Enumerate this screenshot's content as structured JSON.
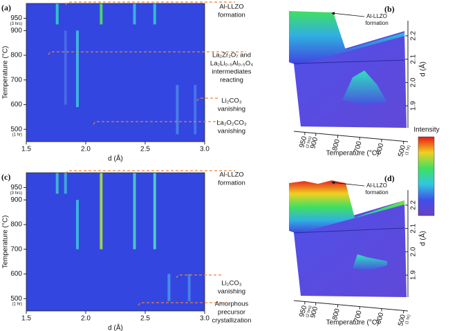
{
  "chart_data": [
    {
      "type": "heatmap",
      "panel": "(a)",
      "xlabel": "d (Å)",
      "ylabel": "Temperature (°C)",
      "xlim": [
        1.5,
        3.0
      ],
      "xticks": [
        1.5,
        {
          "value": 2,
          "label": "2.0"
        },
        2.5,
        {
          "value": 3,
          "label": "3.0"
        }
      ],
      "ylim": [
        450,
        1010
      ],
      "yticks": [
        500,
        600,
        700,
        800,
        900,
        950
      ],
      "ytick_notes": [
        {
          "value": 500,
          "label": "(1 hr)"
        },
        {
          "value": 950,
          "label": "(3 hrs)"
        }
      ],
      "streaks": [
        {
          "d": 1.76,
          "t0": 925,
          "t1": 1010,
          "color": "#30d0c8"
        },
        {
          "d": 2.13,
          "t0": 925,
          "t1": 1010,
          "color": "#50e060"
        },
        {
          "d": 2.41,
          "t0": 925,
          "t1": 1010,
          "color": "#40b8e0"
        },
        {
          "d": 2.58,
          "t0": 925,
          "t1": 1010,
          "color": "#30c8d0"
        },
        {
          "d": 1.93,
          "t0": 590,
          "t1": 900,
          "color": "#40c0e0"
        },
        {
          "d": 1.83,
          "t0": 600,
          "t1": 900,
          "color": "#4a6cec"
        },
        {
          "d": 2.77,
          "t0": 480,
          "t1": 680,
          "color": "#4a84ea"
        },
        {
          "d": 2.92,
          "t0": 480,
          "t1": 680,
          "color": "#4a78ea"
        }
      ],
      "annotations": [
        [
          "Al-LLZO",
          "formation"
        ],
        [
          "La₂Zr₂O₇ and",
          "La₂Li₀.₅Al₀.₅O₄",
          "intermediates",
          "reacting"
        ],
        [
          "Li₂CO₃",
          "vanishing"
        ],
        [
          "La₂O₂CO₃",
          "vanishing"
        ]
      ]
    },
    {
      "type": "surface",
      "panel": "(b)",
      "xlabel": "Temperature (°C)",
      "ylabel": "d (Å)",
      "xlim": [
        1000,
        480
      ],
      "xticks": [
        950,
        900,
        800,
        700,
        600,
        500
      ],
      "xtick_notes": [
        {
          "value": 950,
          "label": "(2 hrs)"
        },
        {
          "value": 500,
          "label": "(1 hr)"
        }
      ],
      "ylim": [
        1.85,
        2.25
      ],
      "yticks": [
        1.9,
        {
          "value": 2,
          "label": "2.0"
        },
        2.1,
        2.2
      ],
      "annotations": [
        [
          "Al-LLZO",
          "formation"
        ]
      ]
    },
    {
      "type": "heatmap",
      "panel": "(c)",
      "xlabel": "d (Å)",
      "ylabel": "Temperature (°C)",
      "xlim": [
        1.5,
        3.0
      ],
      "xticks": [
        1.5,
        {
          "value": 2,
          "label": "2.0"
        },
        2.5,
        {
          "value": 3,
          "label": "3.0"
        }
      ],
      "ylim": [
        450,
        1010
      ],
      "yticks": [
        500,
        600,
        700,
        800,
        900,
        950
      ],
      "ytick_notes": [
        {
          "value": 500,
          "label": "(1 hr)"
        },
        {
          "value": 950,
          "label": "(3 hrs)"
        }
      ],
      "streaks": [
        {
          "d": 1.76,
          "t0": 925,
          "t1": 1010,
          "color": "#40c0d0"
        },
        {
          "d": 1.83,
          "t0": 925,
          "t1": 1010,
          "color": "#40b0d8"
        },
        {
          "d": 2.13,
          "t0": 700,
          "t1": 1010,
          "color": "#a8e040"
        },
        {
          "d": 2.41,
          "t0": 700,
          "t1": 1010,
          "color": "#50d0c0"
        },
        {
          "d": 2.58,
          "t0": 700,
          "t1": 1010,
          "color": "#50d8c0"
        },
        {
          "d": 1.93,
          "t0": 700,
          "t1": 900,
          "color": "#40c0e0"
        },
        {
          "d": 2.7,
          "t0": 490,
          "t1": 600,
          "color": "#4a94ea"
        },
        {
          "d": 2.87,
          "t0": 490,
          "t1": 600,
          "color": "#4a84ea"
        }
      ],
      "annotations": [
        [
          "Al-LLZO",
          "formation"
        ],
        [
          "Li₂CO₃",
          "vanishing"
        ],
        [
          "Amorphous",
          "precursor",
          "crystallization"
        ]
      ]
    },
    {
      "type": "surface",
      "panel": "(d)",
      "xlabel": "Temperature (°C)",
      "ylabel": "d (Å)",
      "xlim": [
        1000,
        480
      ],
      "xticks": [
        950,
        900,
        800,
        700,
        600,
        500
      ],
      "xtick_notes": [
        {
          "value": 950,
          "label": "(2 hrs)"
        },
        {
          "value": 500,
          "label": "(1 hr)"
        }
      ],
      "ylim": [
        1.85,
        2.25
      ],
      "yticks": [
        1.9,
        {
          "value": 2,
          "label": "2.0"
        },
        2.1,
        2.2
      ],
      "annotations": [
        [
          "Al-LLZO",
          "formation"
        ]
      ]
    }
  ],
  "colorbar": {
    "title": "Intensity"
  }
}
